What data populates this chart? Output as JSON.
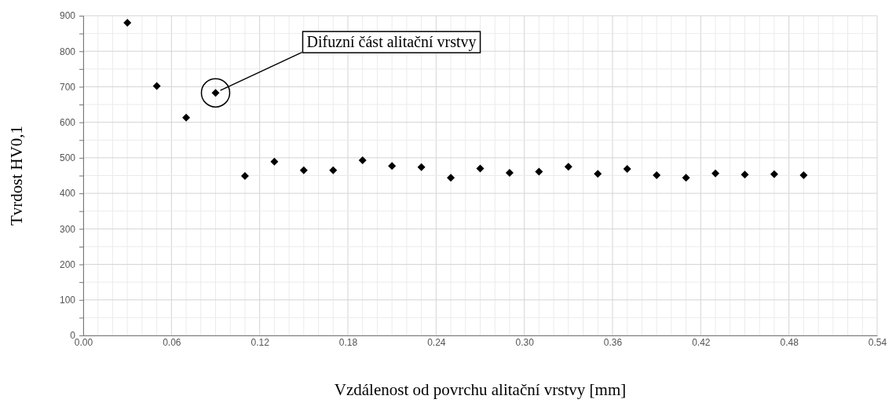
{
  "chart_data": {
    "type": "scatter",
    "xlabel": "Vzdálenost od povrchu alitační vrstvy [mm]",
    "ylabel": "Tvrdost HV0,1",
    "x": [
      0.03,
      0.05,
      0.07,
      0.09,
      0.11,
      0.13,
      0.15,
      0.17,
      0.19,
      0.21,
      0.23,
      0.25,
      0.27,
      0.29,
      0.31,
      0.33,
      0.35,
      0.37,
      0.39,
      0.41,
      0.43,
      0.45,
      0.47,
      0.49
    ],
    "series": [
      {
        "color": "#000000",
        "values": [
          880,
          702,
          613,
          683,
          449,
          489,
          465,
          465,
          493,
          477,
          474,
          444,
          470,
          458,
          461,
          475,
          455,
          469,
          451,
          444,
          456,
          453,
          454,
          451
        ]
      }
    ],
    "marker": "diamond",
    "grid": true,
    "xlim": [
      0,
      0.54
    ],
    "ylim": [
      0,
      900
    ],
    "xticks": [
      {
        "value": 0,
        "label": "0.00"
      },
      {
        "value": 0.01,
        "label": null
      },
      {
        "value": 0.02,
        "label": null
      },
      {
        "value": 0.03,
        "label": null
      },
      {
        "value": 0.04,
        "label": null
      },
      {
        "value": 0.05,
        "label": null
      },
      {
        "value": 0.06,
        "label": "0.06"
      },
      {
        "value": 0.07,
        "label": null
      },
      {
        "value": 0.08,
        "label": null
      },
      {
        "value": 0.09,
        "label": null
      },
      {
        "value": 0.1,
        "label": null
      },
      {
        "value": 0.11,
        "label": null
      },
      {
        "value": 0.12,
        "label": "0.12"
      },
      {
        "value": 0.13,
        "label": null
      },
      {
        "value": 0.14,
        "label": null
      },
      {
        "value": 0.15,
        "label": null
      },
      {
        "value": 0.16,
        "label": null
      },
      {
        "value": 0.17,
        "label": null
      },
      {
        "value": 0.18,
        "label": "0.18"
      },
      {
        "value": 0.19,
        "label": null
      },
      {
        "value": 0.2,
        "label": null
      },
      {
        "value": 0.21,
        "label": null
      },
      {
        "value": 0.22,
        "label": null
      },
      {
        "value": 0.23,
        "label": null
      },
      {
        "value": 0.24,
        "label": "0.24"
      },
      {
        "value": 0.25,
        "label": null
      },
      {
        "value": 0.26,
        "label": null
      },
      {
        "value": 0.27,
        "label": null
      },
      {
        "value": 0.28,
        "label": null
      },
      {
        "value": 0.29,
        "label": null
      },
      {
        "value": 0.3,
        "label": "0.30"
      },
      {
        "value": 0.31,
        "label": null
      },
      {
        "value": 0.32,
        "label": null
      },
      {
        "value": 0.33,
        "label": null
      },
      {
        "value": 0.34,
        "label": null
      },
      {
        "value": 0.35,
        "label": null
      },
      {
        "value": 0.36,
        "label": "0.36"
      },
      {
        "value": 0.37,
        "label": null
      },
      {
        "value": 0.38,
        "label": null
      },
      {
        "value": 0.39,
        "label": null
      },
      {
        "value": 0.4,
        "label": null
      },
      {
        "value": 0.41,
        "label": null
      },
      {
        "value": 0.42,
        "label": "0.42"
      },
      {
        "value": 0.43,
        "label": null
      },
      {
        "value": 0.44,
        "label": null
      },
      {
        "value": 0.45,
        "label": null
      },
      {
        "value": 0.46,
        "label": null
      },
      {
        "value": 0.47,
        "label": null
      },
      {
        "value": 0.48,
        "label": "0.48"
      },
      {
        "value": 0.49,
        "label": null
      },
      {
        "value": 0.5,
        "label": null
      },
      {
        "value": 0.51,
        "label": null
      },
      {
        "value": 0.52,
        "label": null
      },
      {
        "value": 0.53,
        "label": null
      },
      {
        "value": 0.54,
        "label": "0.54"
      }
    ],
    "yticks": [
      0,
      {
        "value": 50,
        "label": null
      },
      100,
      {
        "value": 150,
        "label": null
      },
      200,
      {
        "value": 250,
        "label": null
      },
      300,
      {
        "value": 350,
        "label": null
      },
      400,
      {
        "value": 450,
        "label": null
      },
      500,
      {
        "value": 550,
        "label": null
      },
      600,
      {
        "value": 650,
        "label": null
      },
      700,
      {
        "value": 750,
        "label": null
      },
      800,
      {
        "value": 850,
        "label": null
      },
      900
    ],
    "annotations": [
      {
        "text": "Difuzní část alitační vrstvy",
        "x": 0.09,
        "y": 683
      }
    ]
  }
}
